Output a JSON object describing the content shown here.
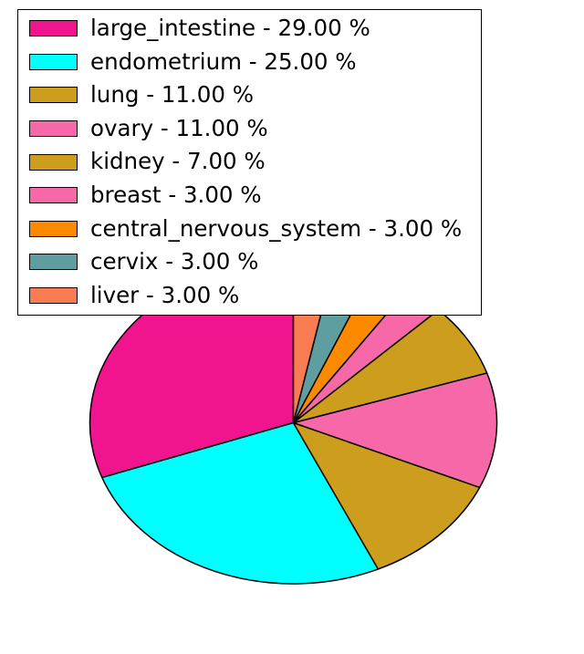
{
  "figure": {
    "background_color": "#ffffff"
  },
  "chart_data": {
    "type": "pie",
    "title": "",
    "start_angle_deg": 90,
    "direction": "counterclockwise",
    "edge_color": "#000000",
    "slices": [
      {
        "label": "large_intestine",
        "percent": 29.0,
        "color": "#F0148F",
        "legend_label": "large_intestine - 29.00 %"
      },
      {
        "label": "endometrium",
        "percent": 25.0,
        "color": "#00FFFF",
        "legend_label": "endometrium - 25.00 %"
      },
      {
        "label": "lung",
        "percent": 11.0,
        "color": "#CD9E1D",
        "legend_label": "lung - 11.00 %"
      },
      {
        "label": "ovary",
        "percent": 11.0,
        "color": "#F768A9",
        "legend_label": "ovary - 11.00 %"
      },
      {
        "label": "kidney",
        "percent": 7.0,
        "color": "#CD9E1D",
        "legend_label": "kidney - 7.00 %"
      },
      {
        "label": "breast",
        "percent": 3.0,
        "color": "#F768A9",
        "legend_label": "breast - 3.00 %"
      },
      {
        "label": "central_nervous_system",
        "percent": 3.0,
        "color": "#FB8A00",
        "legend_label": "central_nervous_system - 3.00 %"
      },
      {
        "label": "cervix",
        "percent": 3.0,
        "color": "#5F9EA0",
        "legend_label": "cervix - 3.00 %"
      },
      {
        "label": "liver",
        "percent": 3.0,
        "color": "#F97C52",
        "legend_label": "liver - 3.00 %"
      }
    ],
    "legend": {
      "position": "upper-left",
      "background_color": "#ffffff",
      "border_color": "#000000",
      "text_color": "#000000"
    }
  }
}
